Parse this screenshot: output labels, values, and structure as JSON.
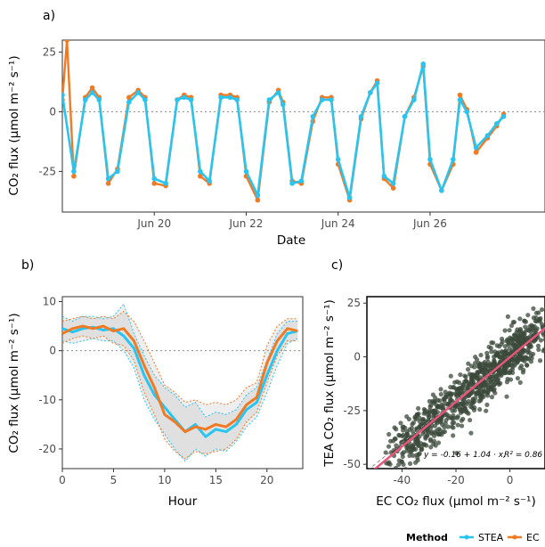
{
  "colors": {
    "stea": "#29c4f0",
    "ec": "#f07a24",
    "regression": "#e8557a",
    "scatter": "#3b4a3b",
    "frame": "#000000"
  },
  "legend": {
    "title": "Method",
    "items": [
      "STEA",
      "EC"
    ]
  },
  "chart_data": [
    {
      "panel": "a)",
      "type": "line",
      "xlabel": "Date",
      "ylabel": "CO₂ flux (μmol m⁻² s⁻¹)",
      "xlim": [
        0,
        10.5
      ],
      "xticks": [
        {
          "label": "Jun 20",
          "x": 2.0
        },
        {
          "label": "Jun 22",
          "x": 4.0
        },
        {
          "label": "Jun 24",
          "x": 6.0
        },
        {
          "label": "Jun 26",
          "x": 8.0
        }
      ],
      "ylim": [
        -42,
        30
      ],
      "yticks": [
        25,
        0,
        -25
      ],
      "reference_line_y": 0,
      "series": [
        {
          "name": "STEA",
          "x": [
            0.0,
            0.25,
            0.5,
            0.65,
            0.8,
            1.0,
            1.2,
            1.45,
            1.65,
            1.8,
            2.0,
            2.25,
            2.5,
            2.65,
            2.8,
            3.0,
            3.2,
            3.45,
            3.65,
            3.8,
            4.0,
            4.25,
            4.5,
            4.7,
            4.8,
            5.0,
            5.2,
            5.45,
            5.65,
            5.85,
            6.0,
            6.25,
            6.5,
            6.7,
            6.85,
            7.0,
            7.2,
            7.45,
            7.65,
            7.85,
            8.0,
            8.25,
            8.5,
            8.65,
            8.8,
            9.0,
            9.25,
            9.45,
            9.6
          ],
          "y": [
            7,
            -25,
            5,
            8,
            5,
            -28,
            -25,
            4,
            8,
            5,
            -28,
            -30,
            5,
            6,
            5,
            -25,
            -29,
            6,
            6,
            5,
            -25,
            -35,
            5,
            8,
            3,
            -30,
            -29,
            -2,
            5,
            5,
            -20,
            -36,
            -2,
            8,
            12,
            -27,
            -30,
            -2,
            5,
            20,
            -20,
            -33,
            -20,
            5,
            0,
            -15,
            -10,
            -5,
            -2
          ]
        },
        {
          "name": "EC",
          "x": [
            0.0,
            0.1,
            0.25,
            0.5,
            0.65,
            0.8,
            1.0,
            1.2,
            1.45,
            1.65,
            1.8,
            2.0,
            2.25,
            2.5,
            2.65,
            2.8,
            3.0,
            3.2,
            3.45,
            3.65,
            3.8,
            4.0,
            4.25,
            4.5,
            4.7,
            4.8,
            5.0,
            5.2,
            5.45,
            5.65,
            5.85,
            6.0,
            6.25,
            6.5,
            6.7,
            6.85,
            7.0,
            7.2,
            7.45,
            7.65,
            7.85,
            8.0,
            8.25,
            8.5,
            8.65,
            8.8,
            9.0,
            9.25,
            9.45,
            9.6
          ],
          "y": [
            5,
            30,
            -27,
            6,
            10,
            6,
            -30,
            -24,
            6,
            9,
            6,
            -30,
            -31,
            5,
            7,
            6,
            -27,
            -30,
            7,
            7,
            6,
            -27,
            -37,
            4,
            9,
            4,
            -29,
            -30,
            -4,
            6,
            6,
            -22,
            -37,
            -3,
            8,
            13,
            -28,
            -32,
            -2,
            6,
            19,
            -22,
            -33,
            -22,
            7,
            1,
            -17,
            -11,
            -6,
            -1
          ]
        }
      ]
    },
    {
      "panel": "b)",
      "type": "line",
      "xlabel": "Hour",
      "ylabel": "CO₂ flux (μmol m⁻² s⁻¹)",
      "xlim": [
        0,
        23.5
      ],
      "xticks": [
        0,
        5,
        10,
        15,
        20
      ],
      "ylim": [
        -24,
        11
      ],
      "yticks": [
        10,
        0,
        -10,
        -20
      ],
      "reference_line_y": 0,
      "series": [
        {
          "name": "STEA",
          "x": [
            0,
            1,
            2,
            3,
            4,
            5,
            6,
            7,
            8,
            9,
            10,
            11,
            12,
            13,
            14,
            15,
            16,
            17,
            18,
            19,
            20,
            21,
            22,
            23
          ],
          "y": [
            4.5,
            3.8,
            4.5,
            4.8,
            4.2,
            4.5,
            3.0,
            0.5,
            -5.0,
            -9.0,
            -11.5,
            -14.0,
            -16.5,
            -15.0,
            -17.5,
            -16.0,
            -16.5,
            -15.0,
            -12.0,
            -10.5,
            -5.0,
            0.0,
            3.5,
            4.0
          ],
          "lower": [
            2.0,
            1.5,
            2.0,
            2.5,
            2.0,
            2.0,
            0.0,
            -3.5,
            -10.0,
            -14.0,
            -17.0,
            -20.0,
            -22.5,
            -20.0,
            -21.5,
            -20.0,
            -20.5,
            -18.5,
            -15.5,
            -13.5,
            -8.5,
            -3.0,
            1.5,
            2.5
          ],
          "upper": [
            7.0,
            6.0,
            7.0,
            7.0,
            6.5,
            7.0,
            9.5,
            3.5,
            -1.0,
            -5.0,
            -7.5,
            -9.0,
            -11.5,
            -10.5,
            -13.5,
            -12.5,
            -13.0,
            -12.0,
            -9.0,
            -7.5,
            -2.0,
            3.5,
            6.0,
            6.0
          ]
        },
        {
          "name": "EC",
          "x": [
            0,
            1,
            2,
            3,
            4,
            5,
            6,
            7,
            8,
            9,
            10,
            11,
            12,
            13,
            14,
            15,
            16,
            17,
            18,
            19,
            20,
            21,
            22,
            23
          ],
          "y": [
            3.5,
            4.5,
            5.0,
            4.5,
            5.0,
            4.0,
            4.5,
            2.0,
            -3.0,
            -7.5,
            -13.0,
            -14.5,
            -16.5,
            -15.5,
            -16.0,
            -15.0,
            -15.5,
            -14.0,
            -11.0,
            -9.5,
            -2.5,
            2.0,
            4.5,
            4.0
          ],
          "lower": [
            1.5,
            2.5,
            3.0,
            2.5,
            3.0,
            1.5,
            1.0,
            -2.0,
            -8.5,
            -13.0,
            -18.0,
            -20.5,
            -22.0,
            -20.5,
            -21.0,
            -20.5,
            -20.0,
            -18.0,
            -14.5,
            -12.5,
            -6.5,
            -1.0,
            2.0,
            2.0
          ],
          "upper": [
            6.0,
            6.5,
            7.0,
            6.5,
            7.0,
            6.5,
            8.0,
            6.0,
            2.0,
            -2.5,
            -7.0,
            -8.5,
            -10.5,
            -10.0,
            -11.0,
            -10.5,
            -11.0,
            -10.0,
            -7.5,
            -6.5,
            1.0,
            5.0,
            6.5,
            6.5
          ]
        }
      ]
    },
    {
      "panel": "c)",
      "type": "scatter",
      "xlabel": "EC CO₂ flux (μmol m⁻² s⁻¹)",
      "ylabel": "TEA CO₂ flux (μmol m⁻² s⁻¹)",
      "xlim": [
        -53,
        13
      ],
      "xticks": [
        -40,
        -20,
        0
      ],
      "ylim": [
        -52,
        28
      ],
      "yticks": [
        25,
        0,
        -25,
        -50
      ],
      "regression": {
        "intercept": -0.16,
        "slope": 1.04,
        "r2": 0.86
      },
      "annotation": {
        "equation": "y = -0.16 + 1.04 · x,",
        "r2": "R² = 0.86"
      }
    }
  ]
}
